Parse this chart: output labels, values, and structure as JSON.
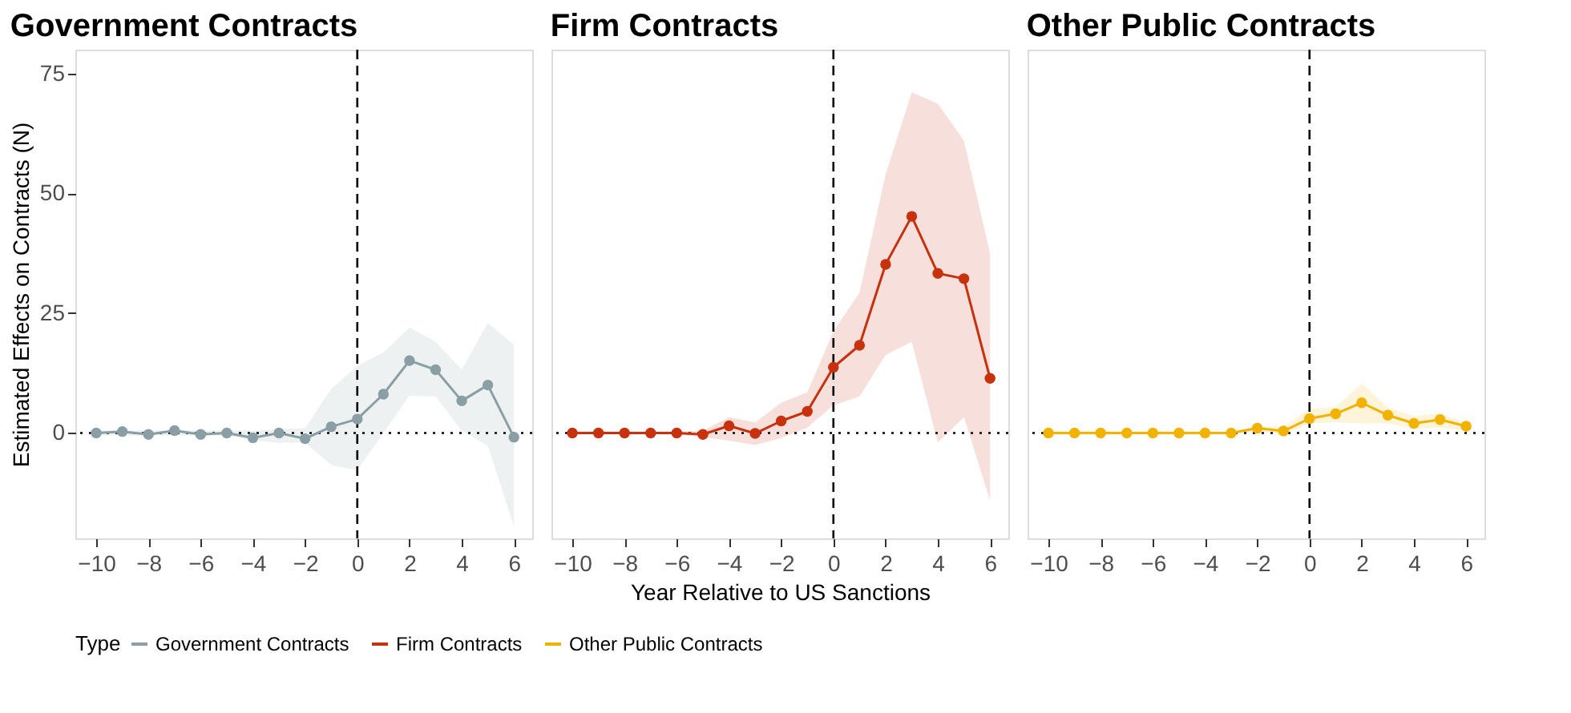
{
  "chart_data": [
    {
      "type": "line",
      "title": "Government Contracts",
      "ylabel": "Estimated Effects on Contracts (N)",
      "legend_title": "Type",
      "legend": "bottom",
      "marker": "circle",
      "grid": false,
      "x": [
        -10,
        -9,
        -8,
        -7,
        -6,
        -5,
        -4,
        -3,
        -2,
        -1,
        0,
        1,
        2,
        3,
        4,
        5,
        6
      ],
      "series": [
        {
          "name": "Government Contracts",
          "color": "#8a9ea6",
          "values": [
            0,
            0.3,
            -0.3,
            0.5,
            -0.3,
            0,
            -1,
            0,
            -1.2,
            1.3,
            2.9,
            8.1,
            15.1,
            13.2,
            6.7,
            10,
            -0.9
          ],
          "lower": [
            -0.5,
            -0.5,
            -0.5,
            -0.5,
            -0.5,
            -0.5,
            -1.5,
            -2,
            -2,
            -6.7,
            -7.8,
            0,
            7.8,
            7.6,
            0.5,
            -2.7,
            -19.5
          ],
          "upper": [
            0.5,
            0.5,
            0.5,
            0.5,
            0.5,
            0.5,
            0.5,
            0.8,
            1,
            9.2,
            14,
            16.8,
            22,
            19,
            13.2,
            23,
            18.4
          ]
        }
      ],
      "xlim": [
        -10.8,
        6.7
      ],
      "ylim": [
        -22,
        80
      ],
      "yticks": [
        0,
        25,
        50,
        75
      ],
      "xticks": [
        {
          "value": -10,
          "label": "−10"
        },
        {
          "value": -8,
          "label": "−8"
        },
        {
          "value": -6,
          "label": "−6"
        },
        {
          "value": -4,
          "label": "−4"
        },
        {
          "value": -2,
          "label": "−2"
        },
        0,
        2,
        4,
        6
      ],
      "ref_lines": [
        {
          "axis": "x",
          "value": 0,
          "line_style": "dashed"
        },
        {
          "axis": "y",
          "value": 0,
          "line_style": "dotted"
        }
      ]
    },
    {
      "type": "line",
      "title": "Firm Contracts",
      "xlabel": "Year Relative to US Sanctions",
      "legend": "bottom",
      "marker": "circle",
      "grid": false,
      "tick_labels": "x",
      "x": [
        -10,
        -9,
        -8,
        -7,
        -6,
        -5,
        -4,
        -3,
        -2,
        -1,
        0,
        1,
        2,
        3,
        4,
        5,
        6
      ],
      "series": [
        {
          "name": "Firm Contracts",
          "color": "#c8310e",
          "values": [
            0,
            0,
            0,
            0,
            0,
            -0.3,
            1.5,
            -0.1,
            2.5,
            4.5,
            13.7,
            18.3,
            35.2,
            45.2,
            33.3,
            32.2,
            11.4
          ],
          "lower": [
            -0.3,
            -0.3,
            -0.3,
            -0.3,
            -0.3,
            -0.8,
            -1.6,
            -2.5,
            -1.1,
            1.1,
            5.8,
            7.6,
            16.3,
            19,
            -2,
            3.3,
            -14.1
          ],
          "upper": [
            0.3,
            0.3,
            0.3,
            0.3,
            0.3,
            0.5,
            3.3,
            2.2,
            6.3,
            8.5,
            21.2,
            29.3,
            54,
            71.1,
            68.7,
            61,
            37.5
          ]
        }
      ],
      "xlim": [
        -10.8,
        6.7
      ],
      "ylim": [
        -22,
        80
      ],
      "yticks": [
        0,
        25,
        50,
        75
      ],
      "xticks": [
        {
          "value": -10,
          "label": "−10"
        },
        {
          "value": -8,
          "label": "−8"
        },
        {
          "value": -6,
          "label": "−6"
        },
        {
          "value": -4,
          "label": "−4"
        },
        {
          "value": -2,
          "label": "−2"
        },
        0,
        2,
        4,
        6
      ],
      "ref_lines": [
        {
          "axis": "x",
          "value": 0,
          "line_style": "dashed"
        },
        {
          "axis": "y",
          "value": 0,
          "line_style": "dotted"
        }
      ]
    },
    {
      "type": "line",
      "title": "Other Public Contracts",
      "legend": "bottom",
      "marker": "circle",
      "grid": false,
      "tick_labels": "x",
      "x": [
        -10,
        -9,
        -8,
        -7,
        -6,
        -5,
        -4,
        -3,
        -2,
        -1,
        0,
        1,
        2,
        3,
        4,
        5,
        6
      ],
      "series": [
        {
          "name": "Other Public Contracts",
          "color": "#f2b200",
          "values": [
            0,
            0,
            0,
            0,
            0,
            0,
            0,
            0,
            1,
            0.4,
            3,
            4,
            6.3,
            3.7,
            2,
            2.8,
            1.4
          ],
          "lower": [
            -0.3,
            -0.3,
            -0.3,
            -0.3,
            -0.3,
            -0.3,
            -0.3,
            -0.3,
            0.5,
            -0.3,
            2,
            2.2,
            2,
            2,
            0.9,
            1.1,
            0.5
          ],
          "upper": [
            0.3,
            0.3,
            0.3,
            0.3,
            0.3,
            0.3,
            0.3,
            0.3,
            1.5,
            1.2,
            5.1,
            5.4,
            10.3,
            5.4,
            3.5,
            4.1,
            2.2
          ]
        }
      ],
      "xlim": [
        -10.8,
        6.7
      ],
      "ylim": [
        -22,
        80
      ],
      "yticks": [
        0,
        25,
        50,
        75
      ],
      "xticks": [
        {
          "value": -10,
          "label": "−10"
        },
        {
          "value": -8,
          "label": "−8"
        },
        {
          "value": -6,
          "label": "−6"
        },
        {
          "value": -4,
          "label": "−4"
        },
        {
          "value": -2,
          "label": "−2"
        },
        0,
        2,
        4,
        6
      ],
      "ref_lines": [
        {
          "axis": "x",
          "value": 0,
          "line_style": "dashed"
        },
        {
          "axis": "y",
          "value": 0,
          "line_style": "dotted"
        }
      ]
    }
  ]
}
